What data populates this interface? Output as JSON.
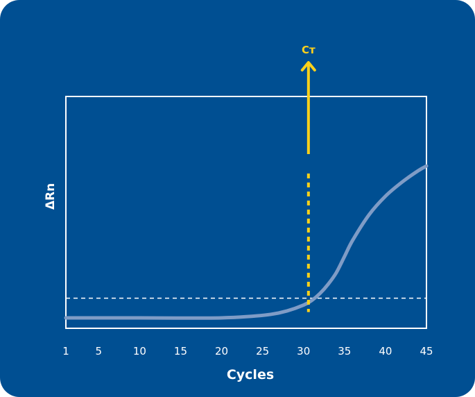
{
  "chart_data": {
    "type": "line",
    "xlabel": "Cycles",
    "ylabel": "ΔRn",
    "x_ticks": [
      1,
      5,
      10,
      15,
      20,
      25,
      30,
      35,
      40,
      45
    ],
    "xlim": [
      1,
      45
    ],
    "ylim": [
      0,
      1
    ],
    "series": [
      {
        "x": [
          1,
          5,
          10,
          15,
          20,
          23,
          26,
          28,
          30,
          31,
          32,
          33,
          34,
          35,
          36,
          38,
          40,
          42,
          44,
          45
        ],
        "y": [
          0.045,
          0.045,
          0.045,
          0.044,
          0.045,
          0.05,
          0.06,
          0.075,
          0.1,
          0.12,
          0.15,
          0.19,
          0.24,
          0.31,
          0.38,
          0.49,
          0.57,
          0.63,
          0.68,
          0.7
        ]
      }
    ],
    "threshold_y": 0.13,
    "ct_x": 30.6,
    "ct_label": "Cт",
    "colors": {
      "background": "#004f92",
      "curve": "#7f9cc6",
      "ct_marker": "#ffd21a",
      "frame": "#ffffff"
    }
  }
}
